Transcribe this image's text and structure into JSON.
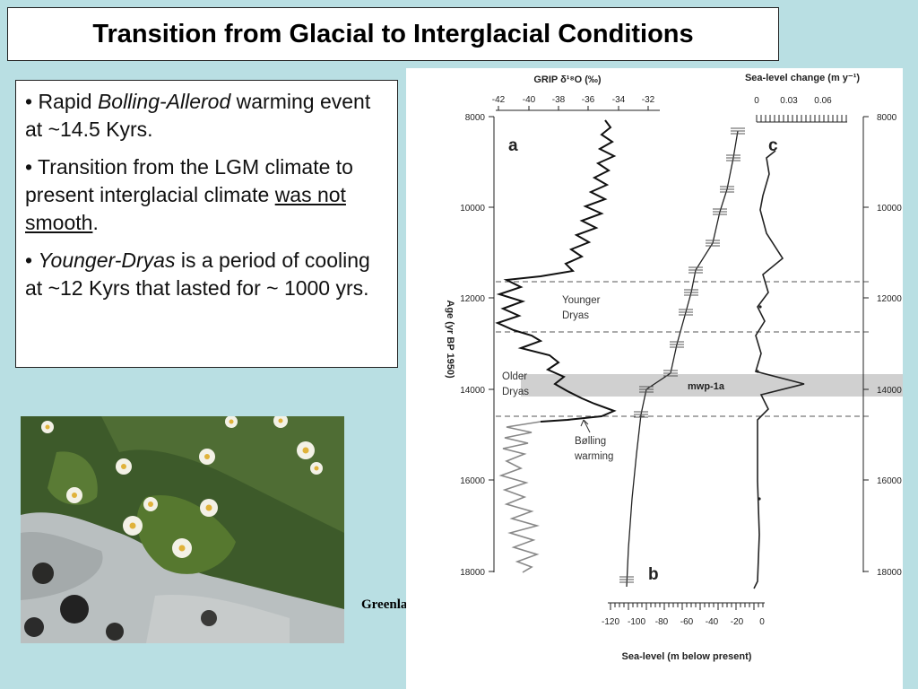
{
  "slide": {
    "title": "Transition from Glacial to Interglacial Conditions",
    "bullets": {
      "b1_pre": "• Rapid ",
      "b1_em": "Bolling-Allerod",
      "b1_post": " warming event at ~14.5 Kyrs.",
      "b2_pre": "• Transition from the LGM climate to present interglacial climate ",
      "b2_u": "was not smooth",
      "b2_post": ".",
      "b3_bullet": "• ",
      "b3_em": "Younger-Dryas",
      "b3_post": " is a period of cooling at ~12 Kyrs that lasted for ~ 1000 yrs."
    },
    "caption": "Greenland Ice Core"
  },
  "figure": {
    "top_left_axis_title": "GRIP δ¹⁸O (‰)",
    "top_left_ticks": [
      "-42",
      "-40",
      "-38",
      "-36",
      "-34",
      "-32"
    ],
    "top_right_axis_title": "Sea-level change (m y⁻¹)",
    "top_right_ticks": [
      "0",
      "0.03",
      "0.06"
    ],
    "bottom_axis_title": "Sea-level (m below present)",
    "bottom_ticks": [
      "-120",
      "-100",
      "-80",
      "-60",
      "-40",
      "-20",
      "0"
    ],
    "y_axis_title": "Age (yr BP 1950)",
    "y_ticks": [
      "8000",
      "10000",
      "12000",
      "14000",
      "16000",
      "18000"
    ],
    "panel_a": "a",
    "panel_b": "b",
    "panel_c": "c",
    "label_younger": "Younger",
    "label_younger2": "Dryas",
    "label_older": "Older",
    "label_older2": "Dryas",
    "label_bolling": "Bølling",
    "label_bolling2": "warming",
    "label_mwp": "mwp-1a"
  }
}
